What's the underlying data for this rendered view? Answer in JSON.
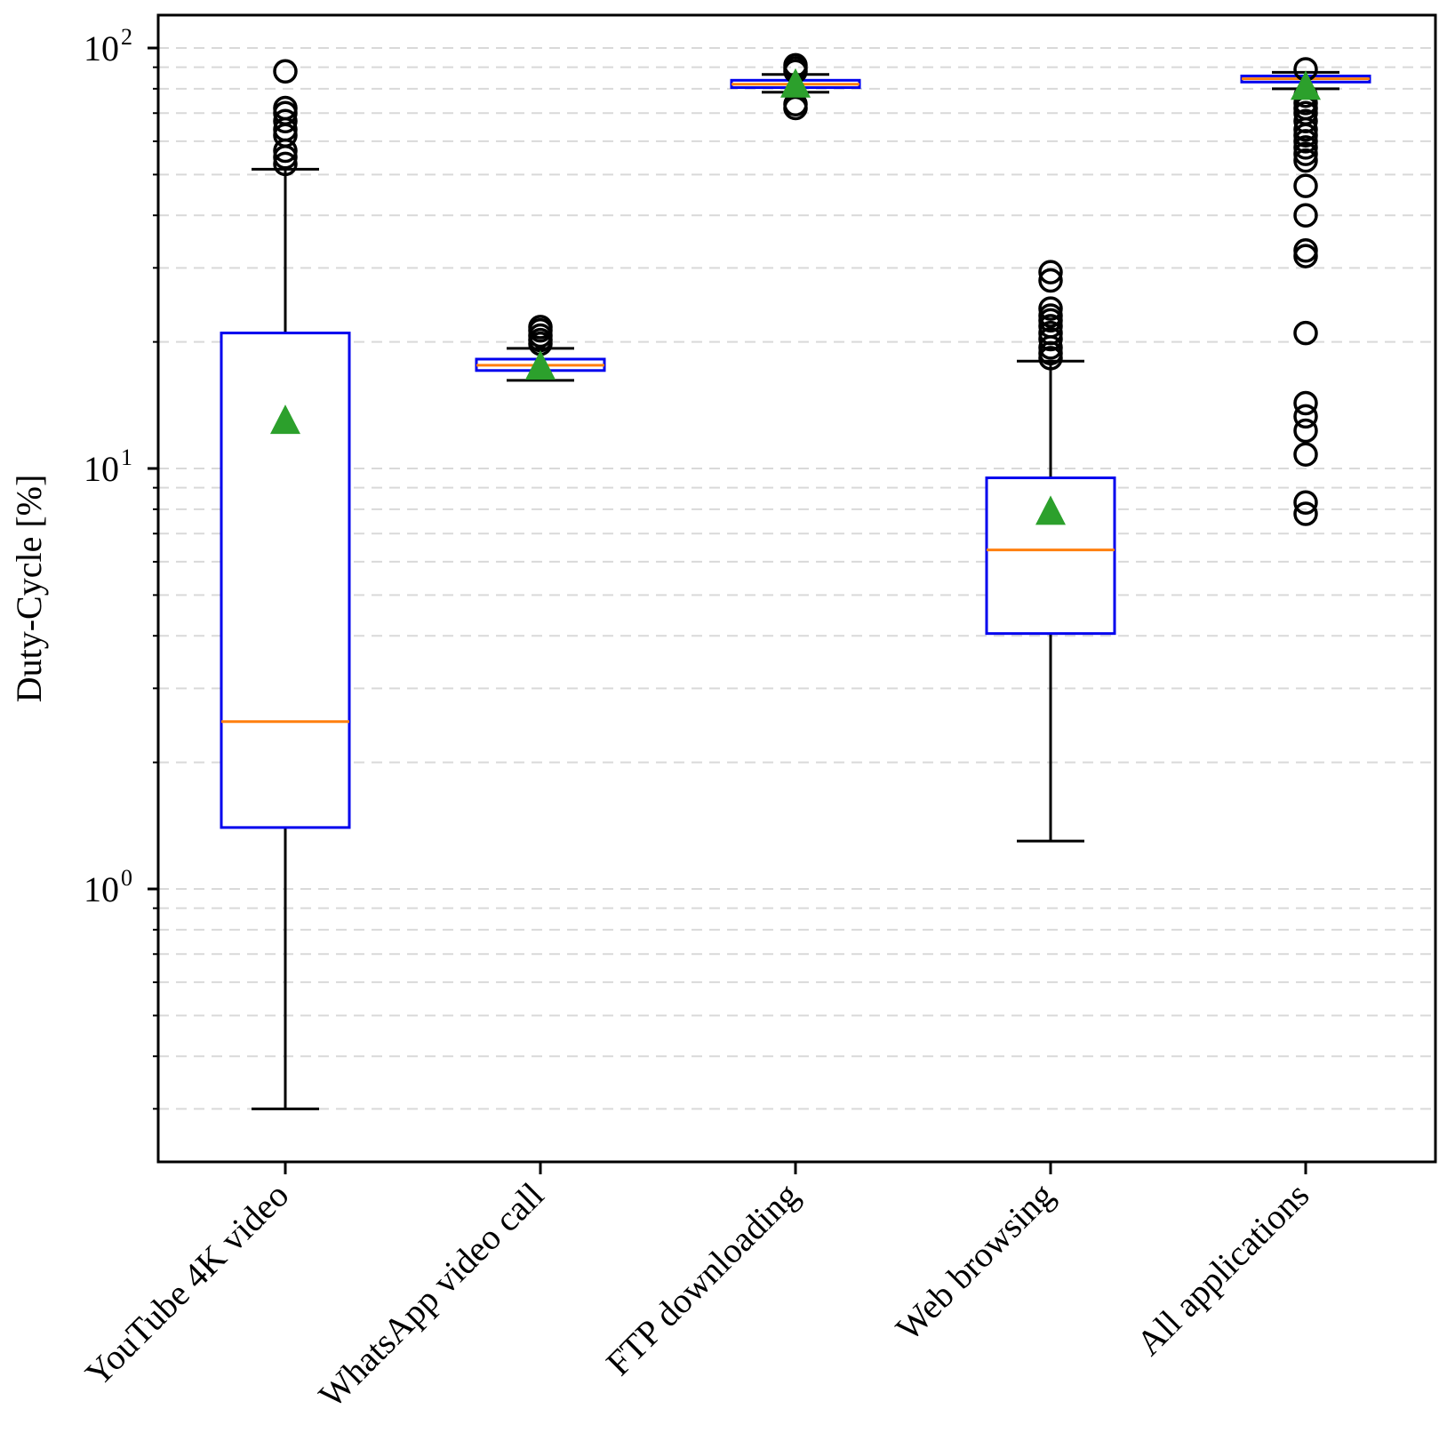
{
  "chart_data": {
    "type": "boxplot",
    "ylabel": "Duty-Cycle [%]",
    "yscale": "log",
    "ylim": [
      0.22,
      120
    ],
    "grid": "horizontal dashed at minor ticks",
    "ytick_base": "10",
    "yticks": [
      {
        "value": 1,
        "exp": "0"
      },
      {
        "value": 10,
        "exp": "1"
      },
      {
        "value": 100,
        "exp": "2"
      }
    ],
    "categories": [
      "YouTube 4K video",
      "WhatsApp video call",
      "FTP downloading",
      "Web browsing",
      "All applications"
    ],
    "boxes": [
      {
        "whisker_low": 0.3,
        "q1": 1.4,
        "median": 2.5,
        "q3": 21.0,
        "whisker_high": 51.5,
        "mean": 13.0,
        "outliers": [
          53,
          55,
          57,
          62,
          64,
          67,
          70,
          72,
          88
        ]
      },
      {
        "whisker_low": 16.2,
        "q1": 17.1,
        "median": 17.6,
        "q3": 18.2,
        "whisker_high": 19.3,
        "mean": 17.5,
        "outliers": [
          19.8,
          20.2,
          20.7,
          21.3,
          21.7
        ]
      },
      {
        "whisker_low": 78.5,
        "q1": 80.5,
        "median": 82.0,
        "q3": 83.8,
        "whisker_high": 86.5,
        "mean": 82.0,
        "outliers": [
          72,
          73.5,
          88,
          89.5,
          91
        ]
      },
      {
        "whisker_low": 1.3,
        "q1": 4.05,
        "median": 6.4,
        "q3": 9.5,
        "whisker_high": 18.0,
        "mean": 7.9,
        "outliers": [
          18.3,
          18.8,
          19.4,
          20.3,
          21.0,
          21.8,
          22.5,
          23.1,
          24.0,
          28.0,
          29.3
        ]
      },
      {
        "whisker_low": 80.0,
        "q1": 83.0,
        "median": 84.5,
        "q3": 85.8,
        "whisker_high": 87.5,
        "mean": 81.0,
        "outliers": [
          7.8,
          8.3,
          10.8,
          12.3,
          13.3,
          14.3,
          21.0,
          32.0,
          33.0,
          40.0,
          47.0,
          54.0,
          56.0,
          58.0,
          60.0,
          62.0,
          64.0,
          67.0,
          70.0,
          72.0,
          74.0,
          77.0,
          89.0
        ]
      }
    ],
    "colors": {
      "box": "#0000ee",
      "median": "#ff7f0e",
      "mean": "#2ca02c",
      "whisker": "#000000",
      "outlier": "#000000",
      "grid": "#d9d9d9"
    }
  }
}
